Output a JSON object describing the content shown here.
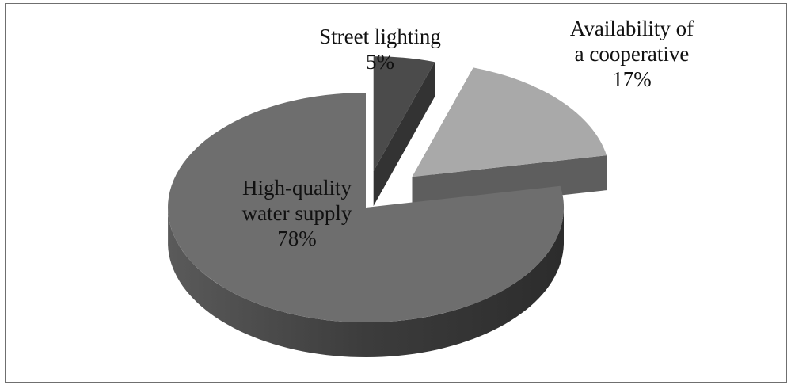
{
  "chart_data": {
    "type": "pie",
    "title": "",
    "slices": [
      {
        "label": [
          "High-quality",
          "water supply"
        ],
        "percent_label": "78%",
        "value": 78,
        "color": "#6e6e6e",
        "side": "#4a4a4a",
        "exploded": false
      },
      {
        "label": [
          "Street lighting"
        ],
        "percent_label": "5%",
        "value": 5,
        "color": "#4b4b4b",
        "side": "#333333",
        "exploded": true
      },
      {
        "label": [
          "Availability of",
          "a cooperative"
        ],
        "percent_label": "17%",
        "value": 17,
        "color": "#a9a9a9",
        "side": "#5e5e5e",
        "exploded": true
      }
    ]
  }
}
